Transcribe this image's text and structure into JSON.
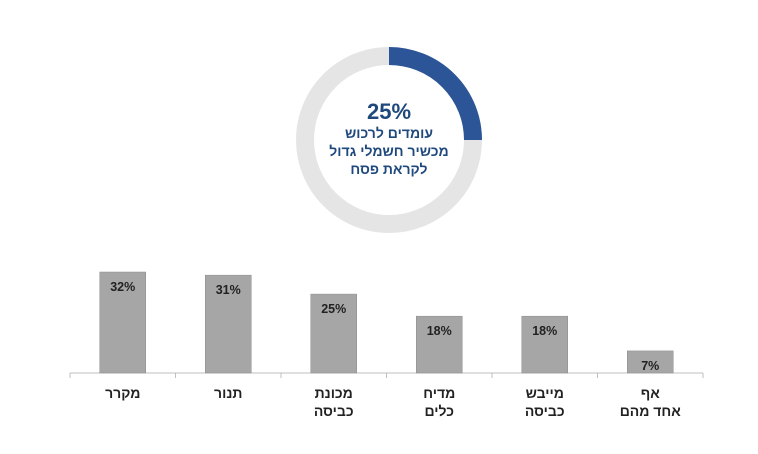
{
  "colors": {
    "donut_highlight": "#2b5596",
    "donut_rest": "#e5e5e5",
    "donut_text": "#1f497d",
    "bar_fill": "#a6a6a6",
    "bar_stroke": "#8c8c8c",
    "label_text": "#222222",
    "axis_line": "#bfbfbf"
  },
  "chart_data": [
    {
      "type": "pie",
      "style": "donut",
      "value_label": "25%",
      "value": 25,
      "caption_lines": [
        "עומדים לרכוש",
        "מכשיר חשמלי גדול",
        "לקראת פסח"
      ]
    },
    {
      "type": "bar",
      "direction": "rtl",
      "categories": [
        [
          "מקרר"
        ],
        [
          "תנור"
        ],
        [
          "מכונת",
          "כביסה"
        ],
        [
          "מדיח",
          "כלים"
        ],
        [
          "מייבש",
          "כביסה"
        ],
        [
          "אף",
          "אחד מהם"
        ]
      ],
      "values": [
        32,
        31,
        25,
        18,
        18,
        7
      ],
      "value_labels": [
        "32%",
        "31%",
        "25%",
        "18%",
        "18%",
        "7%"
      ],
      "ylim": [
        0,
        32
      ],
      "grid": false,
      "legend": "none"
    }
  ]
}
